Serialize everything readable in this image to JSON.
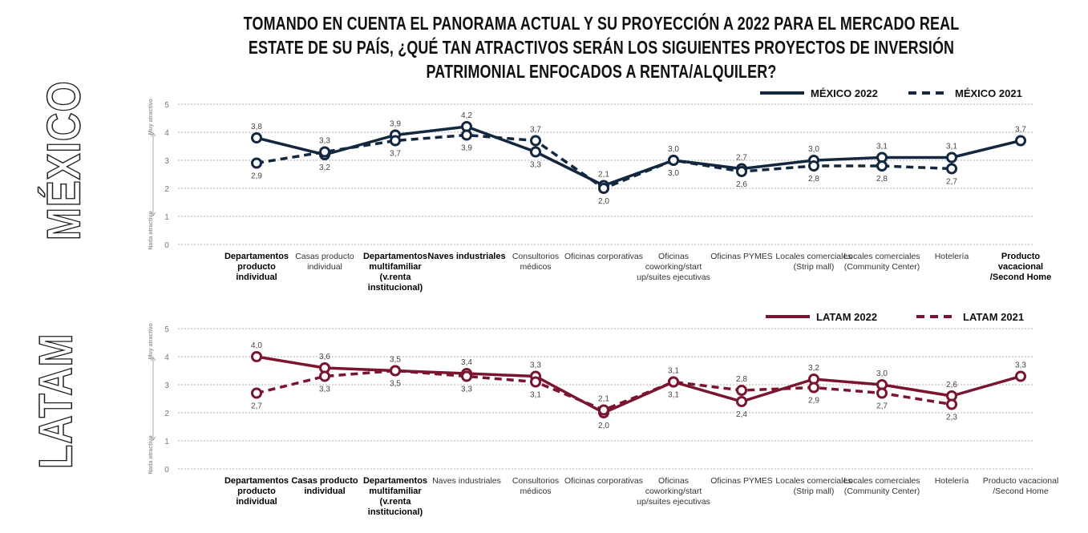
{
  "title": "TOMANDO EN CUENTA EL PANORAMA ACTUAL Y SU PROYECCIÓN A 2022 PARA EL MERCADO REAL ESTATE DE SU PAÍS, ¿QUÉ TAN ATRACTIVOS SERÁN LOS SIGUIENTES PROYECTOS DE INVERSIÓN PATRIMONIAL ENFOCADOS A RENTA/ALQUILER?",
  "chart_data": [
    {
      "type": "line",
      "panel": "MÉXICO",
      "color": "#13283f",
      "ylim": [
        0,
        5
      ],
      "yticks": [
        "0",
        "1",
        "2",
        "3",
        "4",
        "5"
      ],
      "y_top_note": "Muy atractivo",
      "y_bottom_note": "Nada atractivo",
      "grid": true,
      "legend_position": "top-right",
      "categories": [
        {
          "label": "Departamentos producto individual",
          "bold": true
        },
        {
          "label": "Casas producto individual",
          "bold": false
        },
        {
          "label": "Departamentos multifamiliar (v.renta institucional)",
          "bold": true
        },
        {
          "label": "Naves industriales",
          "bold": true
        },
        {
          "label": "Consultorios médicos",
          "bold": false
        },
        {
          "label": "Oficinas corporativas",
          "bold": false
        },
        {
          "label": "Oficinas coworking/start up/suites ejecutivas",
          "bold": false
        },
        {
          "label": "Oficinas PYMES",
          "bold": false
        },
        {
          "label": "Locales comerciales (Strip mall)",
          "bold": false
        },
        {
          "label": "Locales comerciales (Community Center)",
          "bold": false
        },
        {
          "label": "Hotelería",
          "bold": false
        },
        {
          "label": "Producto vacacional /Second Home",
          "bold": true
        }
      ],
      "series": [
        {
          "name": "MÉXICO 2022",
          "style": "solid",
          "values": [
            3.8,
            3.2,
            3.9,
            4.2,
            3.3,
            2.1,
            3.0,
            2.7,
            3.0,
            3.1,
            3.1,
            3.7
          ]
        },
        {
          "name": "MÉXICO 2021",
          "style": "dashed",
          "values": [
            2.9,
            3.3,
            3.7,
            3.9,
            3.7,
            2.0,
            3.0,
            2.6,
            2.8,
            2.8,
            2.7,
            null
          ]
        }
      ]
    },
    {
      "type": "line",
      "panel": "LATAM",
      "color": "#7a1530",
      "ylim": [
        0,
        5
      ],
      "yticks": [
        "0",
        "1",
        "2",
        "3",
        "4",
        "5"
      ],
      "y_top_note": "Muy atractivo",
      "y_bottom_note": "Nada atractivo",
      "grid": true,
      "legend_position": "top-right",
      "categories": [
        {
          "label": "Departamentos producto individual",
          "bold": true
        },
        {
          "label": "Casas producto individual",
          "bold": true
        },
        {
          "label": "Departamentos multifamiliar (v.renta institucional)",
          "bold": true
        },
        {
          "label": "Naves industriales",
          "bold": false
        },
        {
          "label": "Consultorios médicos",
          "bold": false
        },
        {
          "label": "Oficinas corporativas",
          "bold": false
        },
        {
          "label": "Oficinas coworking/start up/suites ejecutivas",
          "bold": false
        },
        {
          "label": "Oficinas PYMES",
          "bold": false
        },
        {
          "label": "Locales comerciales (Strip mall)",
          "bold": false
        },
        {
          "label": "Locales comerciales (Community Center)",
          "bold": false
        },
        {
          "label": "Hotelería",
          "bold": false
        },
        {
          "label": "Producto vacacional /Second Home",
          "bold": false
        }
      ],
      "series": [
        {
          "name": "LATAM 2022",
          "style": "solid",
          "values": [
            4.0,
            3.6,
            3.5,
            3.4,
            3.3,
            2.0,
            3.1,
            2.4,
            3.2,
            3.0,
            2.6,
            3.3
          ]
        },
        {
          "name": "LATAM 2021",
          "style": "dashed",
          "values": [
            2.7,
            3.3,
            3.5,
            3.3,
            3.1,
            2.1,
            3.1,
            2.8,
            2.9,
            2.7,
            2.3,
            null
          ]
        }
      ]
    }
  ]
}
